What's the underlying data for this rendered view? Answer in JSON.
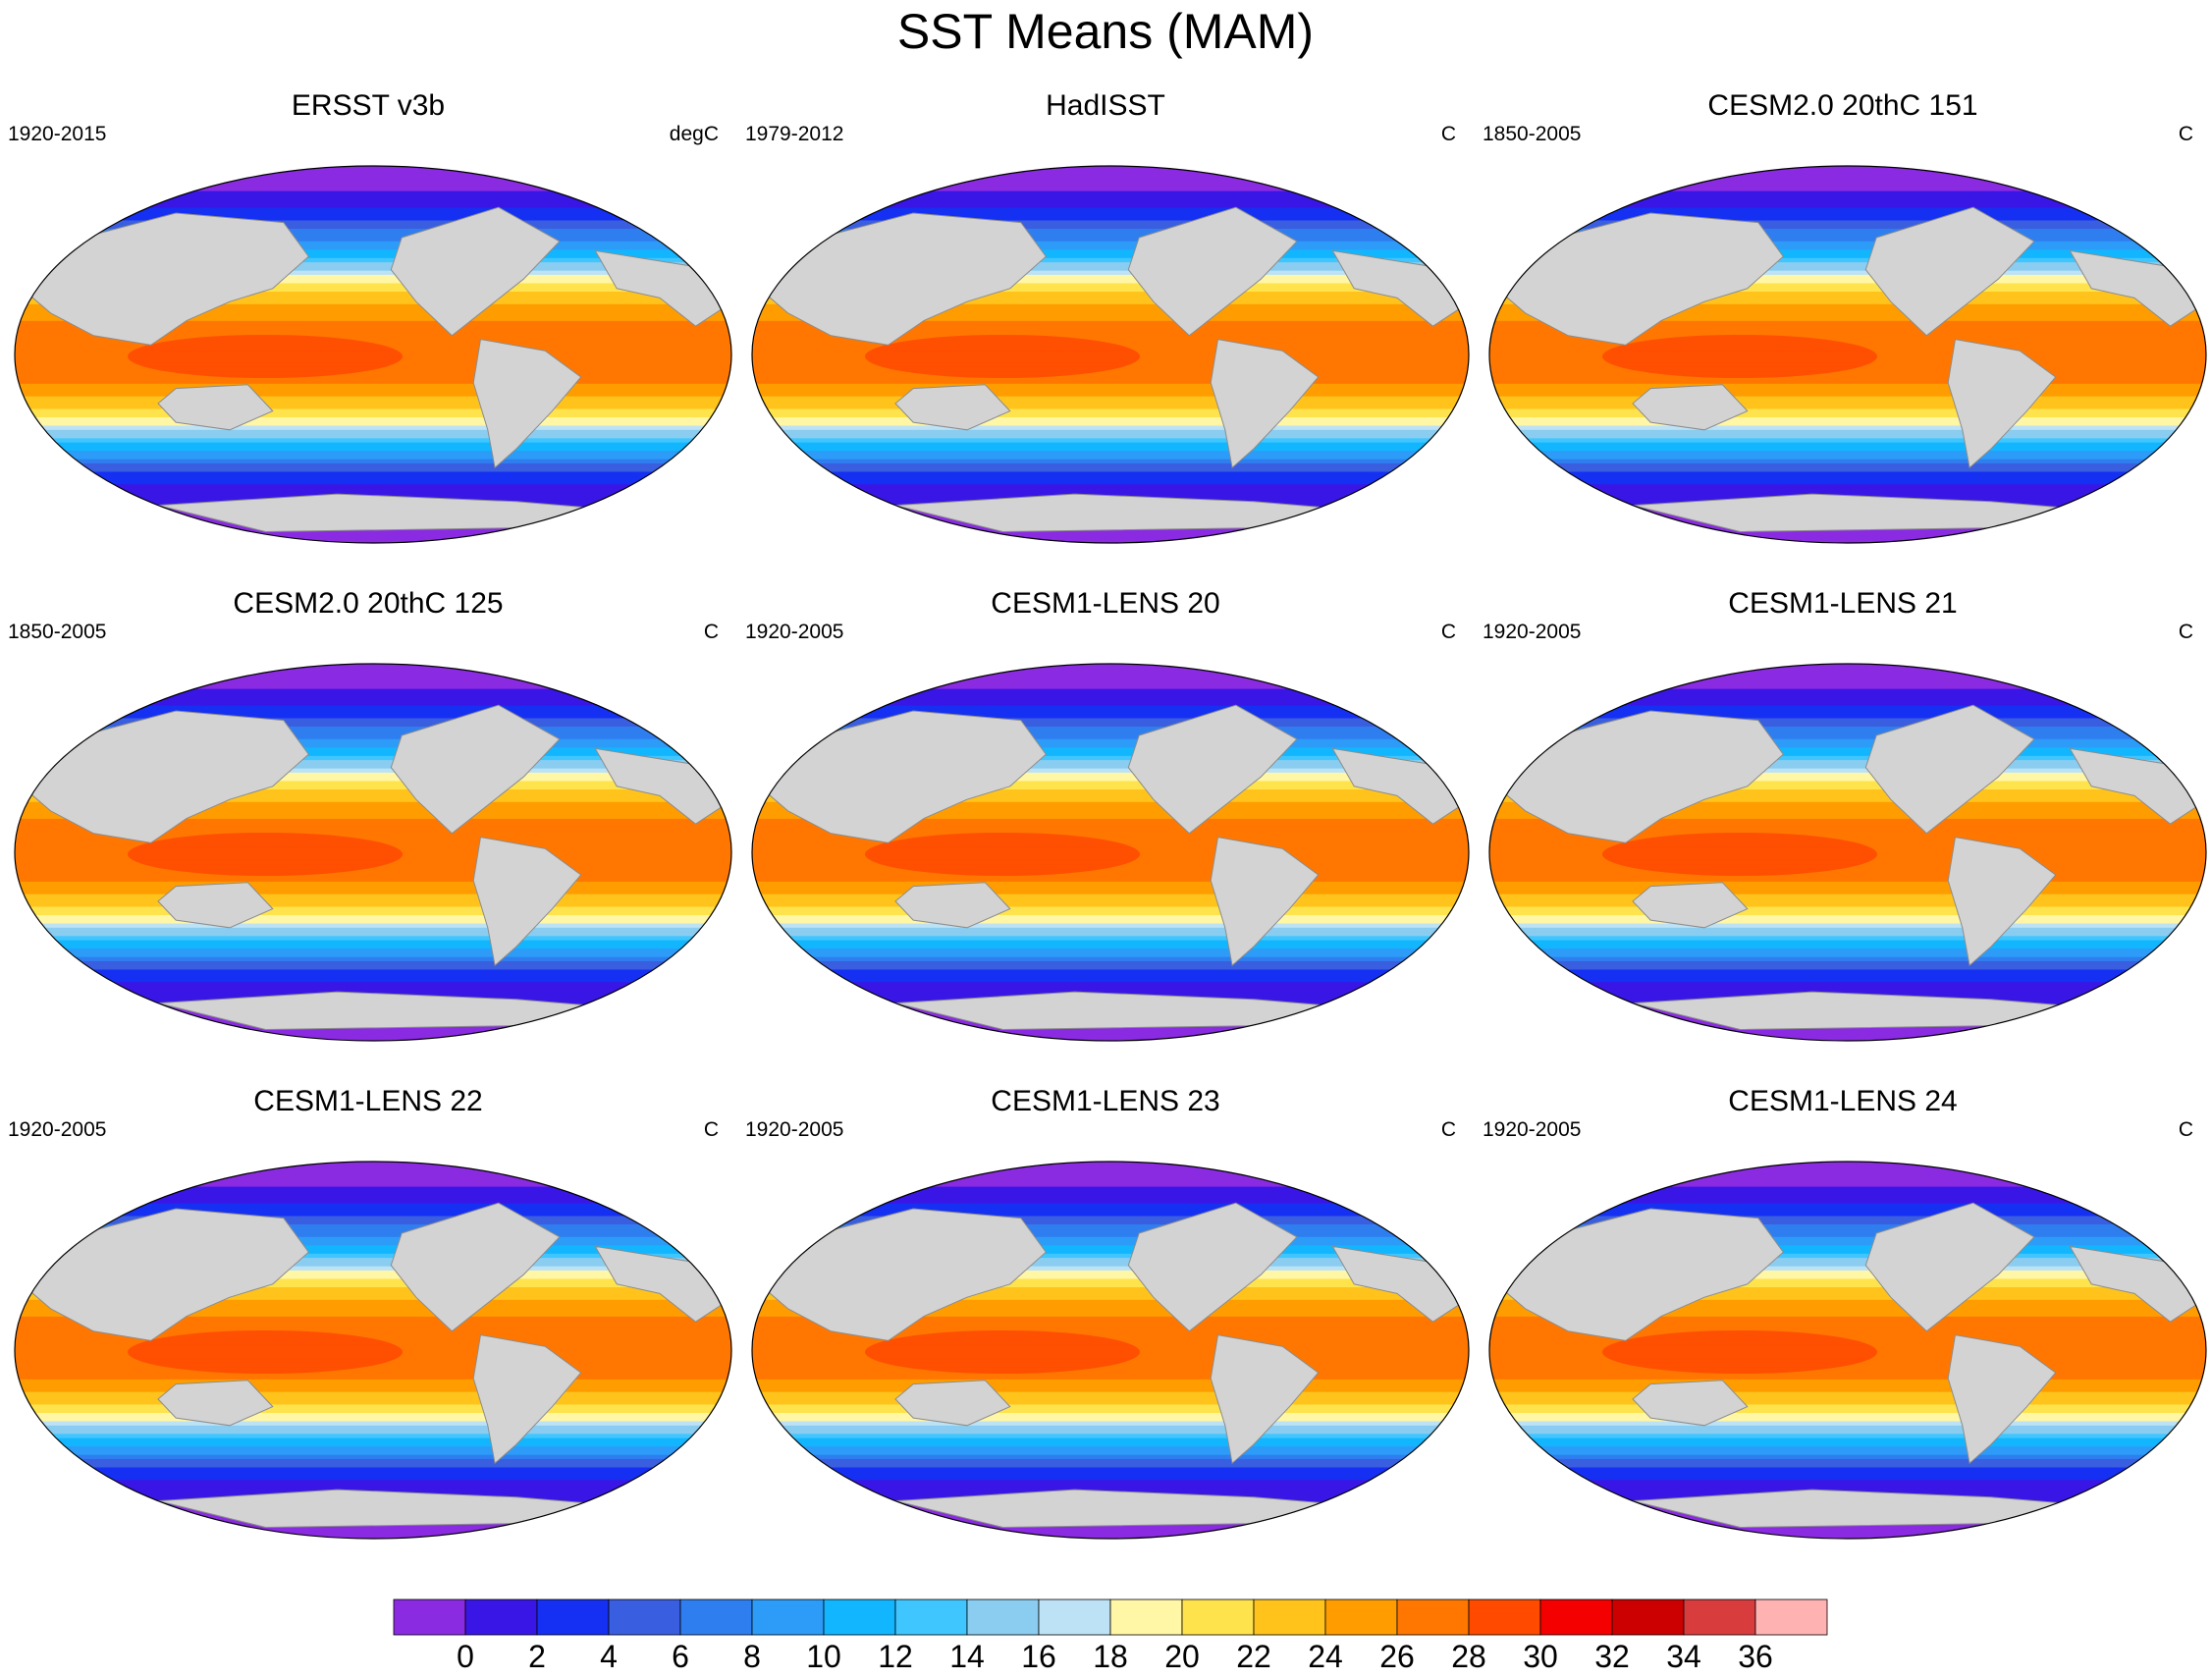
{
  "title": "SST Means (MAM)",
  "chart_data": {
    "type": "heatmap",
    "title": "SST Means (MAM)",
    "projection": "Robinson (global)",
    "layout": "3x3 panels",
    "panels": [
      {
        "title": "ERSST v3b",
        "period": "1920-2015",
        "units": "degC"
      },
      {
        "title": "HadISST",
        "period": "1979-2012",
        "units": "C"
      },
      {
        "title": "CESM2.0 20thC 151",
        "period": "1850-2005",
        "units": "C"
      },
      {
        "title": "CESM2.0 20thC 125",
        "period": "1850-2005",
        "units": "C"
      },
      {
        "title": "CESM1-LENS 20",
        "period": "1920-2005",
        "units": "C"
      },
      {
        "title": "CESM1-LENS 21",
        "period": "1920-2005",
        "units": "C"
      },
      {
        "title": "CESM1-LENS 22",
        "period": "1920-2005",
        "units": "C"
      },
      {
        "title": "CESM1-LENS 23",
        "period": "1920-2005",
        "units": "C"
      },
      {
        "title": "CESM1-LENS 24",
        "period": "1920-2005",
        "units": "C"
      }
    ],
    "colorbar": {
      "labels": [
        "0",
        "2",
        "4",
        "6",
        "8",
        "10",
        "12",
        "14",
        "16",
        "18",
        "20",
        "22",
        "24",
        "26",
        "28",
        "30",
        "32",
        "34",
        "36"
      ],
      "colors": [
        "#8a2be2",
        "#3a16e6",
        "#1530f2",
        "#3a5ee0",
        "#2f7ef0",
        "#2c9cf8",
        "#12b6ff",
        "#40c6ff",
        "#8acdf0",
        "#bde2f6",
        "#fff6a6",
        "#ffe34c",
        "#ffc31c",
        "#ff9d00",
        "#ff7700",
        "#ff4a00",
        "#f40000",
        "#cc0000",
        "#d83c3c",
        "#ffb2b2"
      ],
      "range": [
        -2,
        38
      ]
    },
    "land_color": "#d3d3d3",
    "zonal_profile_degC": {
      "lat": [
        -78,
        -70,
        -62,
        -55,
        -48,
        -42,
        -36,
        -30,
        -24,
        -18,
        -12,
        -6,
        0,
        6,
        12,
        18,
        24,
        30,
        36,
        42,
        48,
        55,
        62,
        70,
        78
      ],
      "sst": [
        -1,
        0,
        1,
        3,
        7,
        11,
        15,
        19,
        22,
        24.5,
        26.5,
        27.5,
        27.5,
        27.5,
        27,
        25.5,
        23.5,
        21,
        17.5,
        13.5,
        9.5,
        6.5,
        3.5,
        1,
        -1
      ]
    }
  }
}
